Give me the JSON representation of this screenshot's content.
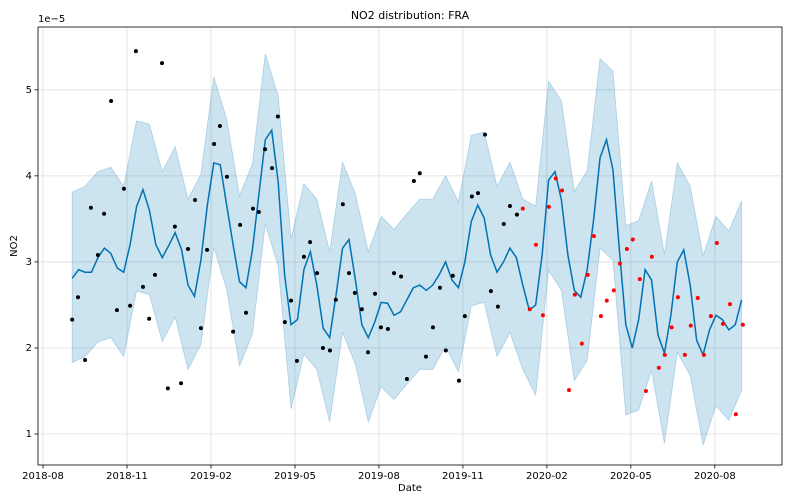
{
  "chart_data": {
    "type": "forecast",
    "title": "NO2 distribution: FRA",
    "xlabel": "Date",
    "ylabel": "NO2",
    "y_offset_label": "1e−5",
    "xlim": [
      -0.18,
      26.4
    ],
    "ylim": [
      0.64,
      5.73
    ],
    "xticks": [
      {
        "value": 0,
        "label": "2018-08"
      },
      {
        "value": 3,
        "label": "2018-11"
      },
      {
        "value": 6,
        "label": "2019-02"
      },
      {
        "value": 9,
        "label": "2019-05"
      },
      {
        "value": 12,
        "label": "2019-08"
      },
      {
        "value": 15,
        "label": "2019-11"
      },
      {
        "value": 18,
        "label": "2020-02"
      },
      {
        "value": 21,
        "label": "2020-05"
      },
      {
        "value": 24,
        "label": "2020-08"
      }
    ],
    "yticks": [
      1,
      2,
      3,
      4,
      5
    ],
    "grid": true,
    "series": [
      {
        "kind": "band",
        "color": "#0072b2",
        "x": [
          1.04,
          1.5,
          1.96,
          2.42,
          2.88,
          3.34,
          3.8,
          4.26,
          4.72,
          5.18,
          5.64,
          6.1,
          6.56,
          7.02,
          7.48,
          7.94,
          8.4,
          8.86,
          9.32,
          9.78,
          10.24,
          10.7,
          11.16,
          11.62,
          12.08,
          12.54,
          13.0,
          13.46,
          13.92,
          14.38,
          14.84,
          15.3,
          15.76,
          16.22,
          16.68,
          17.14,
          17.6,
          18.06,
          18.52,
          18.98,
          19.44,
          19.9,
          20.36,
          20.82,
          21.28,
          21.74,
          22.2,
          22.66,
          23.12,
          23.58,
          24.04,
          24.5,
          24.96
        ],
        "upper": [
          3.81,
          3.88,
          4.05,
          4.1,
          3.88,
          4.64,
          4.6,
          4.05,
          4.34,
          3.73,
          4.02,
          5.15,
          4.66,
          3.77,
          4.14,
          5.42,
          4.93,
          3.27,
          3.91,
          3.73,
          3.12,
          4.16,
          3.79,
          3.12,
          3.53,
          3.38,
          3.56,
          3.73,
          3.73,
          4.0,
          3.7,
          4.47,
          4.51,
          3.88,
          4.16,
          3.73,
          3.65,
          5.1,
          4.87,
          3.82,
          4.06,
          5.36,
          5.22,
          3.42,
          3.48,
          3.94,
          3.09,
          4.15,
          3.88,
          3.07,
          3.53,
          3.36,
          3.71
        ],
        "lower": [
          1.83,
          1.9,
          2.07,
          2.12,
          1.9,
          2.66,
          2.62,
          2.07,
          2.36,
          1.75,
          2.04,
          3.17,
          2.68,
          1.79,
          2.16,
          3.44,
          2.95,
          1.29,
          1.93,
          1.75,
          1.14,
          2.18,
          1.81,
          1.14,
          1.55,
          1.4,
          1.58,
          1.75,
          1.75,
          2.02,
          1.72,
          2.49,
          2.53,
          1.9,
          2.18,
          1.75,
          1.45,
          2.9,
          2.67,
          1.62,
          1.86,
          3.16,
          3.02,
          1.22,
          1.28,
          1.74,
          0.89,
          1.95,
          1.68,
          0.87,
          1.33,
          1.16,
          1.51
        ]
      },
      {
        "kind": "line",
        "color": "#0072b2",
        "x": [
          1.04,
          1.27,
          1.5,
          1.73,
          1.96,
          2.19,
          2.42,
          2.65,
          2.88,
          3.11,
          3.34,
          3.57,
          3.8,
          4.03,
          4.26,
          4.49,
          4.72,
          4.95,
          5.18,
          5.41,
          5.64,
          5.87,
          6.1,
          6.33,
          6.56,
          6.79,
          7.02,
          7.25,
          7.48,
          7.71,
          7.94,
          8.17,
          8.4,
          8.63,
          8.86,
          9.09,
          9.32,
          9.55,
          9.78,
          10.01,
          10.24,
          10.47,
          10.7,
          10.93,
          11.16,
          11.39,
          11.62,
          11.85,
          12.08,
          12.31,
          12.54,
          12.77,
          13.0,
          13.23,
          13.46,
          13.69,
          13.92,
          14.15,
          14.38,
          14.61,
          14.84,
          15.07,
          15.3,
          15.53,
          15.76,
          15.99,
          16.22,
          16.45,
          16.68,
          16.91,
          17.14,
          17.37,
          17.6,
          17.83,
          18.06,
          18.29,
          18.52,
          18.75,
          18.98,
          19.21,
          19.44,
          19.67,
          19.9,
          20.13,
          20.36,
          20.59,
          20.82,
          21.05,
          21.28,
          21.51,
          21.74,
          21.97,
          22.2,
          22.43,
          22.66,
          22.89,
          23.12,
          23.35,
          23.58,
          23.81,
          24.04,
          24.27,
          24.5,
          24.73,
          24.96
        ],
        "values": [
          2.81,
          2.91,
          2.88,
          2.88,
          3.05,
          3.16,
          3.1,
          2.93,
          2.88,
          3.2,
          3.64,
          3.84,
          3.6,
          3.2,
          3.05,
          3.19,
          3.34,
          3.14,
          2.73,
          2.6,
          3.02,
          3.66,
          4.15,
          4.13,
          3.66,
          3.2,
          2.77,
          2.7,
          3.14,
          3.78,
          4.42,
          4.53,
          3.93,
          2.85,
          2.27,
          2.33,
          2.91,
          3.12,
          2.73,
          2.23,
          2.12,
          2.62,
          3.16,
          3.26,
          2.79,
          2.27,
          2.12,
          2.3,
          2.53,
          2.52,
          2.38,
          2.42,
          2.56,
          2.7,
          2.73,
          2.67,
          2.73,
          2.85,
          3.0,
          2.79,
          2.7,
          3.0,
          3.47,
          3.66,
          3.51,
          3.08,
          2.88,
          3.0,
          3.16,
          3.05,
          2.73,
          2.44,
          2.5,
          3.08,
          3.95,
          4.05,
          3.72,
          3.08,
          2.67,
          2.59,
          2.91,
          3.49,
          4.21,
          4.42,
          4.07,
          3.14,
          2.27,
          2.0,
          2.33,
          2.91,
          2.79,
          2.15,
          1.94,
          2.38,
          3.0,
          3.14,
          2.73,
          2.09,
          1.92,
          2.21,
          2.38,
          2.33,
          2.21,
          2.27,
          2.56
        ]
      },
      {
        "kind": "scatter",
        "color": "#000000",
        "x": [
          1.04,
          1.25,
          1.5,
          1.71,
          1.96,
          2.18,
          2.43,
          2.64,
          2.89,
          3.11,
          3.32,
          3.57,
          3.79,
          4.0,
          4.25,
          4.46,
          4.71,
          4.93,
          5.18,
          5.43,
          5.64,
          5.86,
          6.11,
          6.32,
          6.57,
          6.79,
          7.04,
          7.25,
          7.5,
          7.71,
          7.93,
          8.18,
          8.39,
          8.64,
          8.86,
          9.07,
          9.32,
          9.54,
          9.79,
          10.0,
          10.25,
          10.46,
          10.71,
          10.93,
          11.14,
          11.39,
          11.61,
          11.86,
          12.07,
          12.32,
          12.54,
          12.79,
          13.0,
          13.25,
          13.46,
          13.68,
          13.93,
          14.18,
          14.39,
          14.64,
          14.86,
          15.07,
          15.32,
          15.54,
          15.79,
          16.0,
          16.25,
          16.46,
          16.68,
          16.93
        ],
        "values": [
          2.33,
          2.59,
          1.86,
          3.63,
          3.08,
          3.56,
          4.87,
          2.44,
          3.85,
          2.49,
          5.45,
          2.71,
          2.34,
          2.85,
          5.31,
          1.53,
          3.41,
          1.59,
          3.15,
          3.72,
          2.23,
          3.14,
          4.37,
          4.58,
          3.99,
          2.19,
          3.43,
          2.41,
          3.62,
          3.58,
          4.31,
          4.09,
          4.69,
          2.3,
          2.55,
          1.85,
          3.06,
          3.23,
          2.87,
          2.0,
          1.97,
          2.56,
          3.67,
          2.87,
          2.64,
          2.45,
          1.95,
          2.63,
          2.24,
          2.22,
          2.87,
          2.83,
          1.64,
          3.94,
          4.03,
          1.9,
          2.24,
          2.7,
          1.97,
          2.84,
          1.62,
          2.37,
          3.76,
          3.8,
          4.48,
          2.66,
          2.48,
          3.44,
          3.65,
          3.55
        ]
      },
      {
        "kind": "scatter",
        "color": "#ff0000",
        "x": [
          17.14,
          17.39,
          17.61,
          17.86,
          18.07,
          18.32,
          18.54,
          18.79,
          19.0,
          19.25,
          19.46,
          19.68,
          19.93,
          20.14,
          20.39,
          20.61,
          20.86,
          21.07,
          21.32,
          21.54,
          21.75,
          22.0,
          22.21,
          22.46,
          22.68,
          22.93,
          23.14,
          23.39,
          23.61,
          23.86,
          24.07,
          24.29,
          24.54,
          24.75,
          25.0
        ],
        "values": [
          3.62,
          2.45,
          3.2,
          2.38,
          3.64,
          3.97,
          3.83,
          1.51,
          2.62,
          2.05,
          2.85,
          3.3,
          2.37,
          2.55,
          2.67,
          2.98,
          3.15,
          3.26,
          2.8,
          1.5,
          3.06,
          1.77,
          1.92,
          2.24,
          2.59,
          1.92,
          2.26,
          2.58,
          1.92,
          2.37,
          3.22,
          2.28,
          2.51,
          1.23,
          2.27
        ]
      }
    ]
  }
}
